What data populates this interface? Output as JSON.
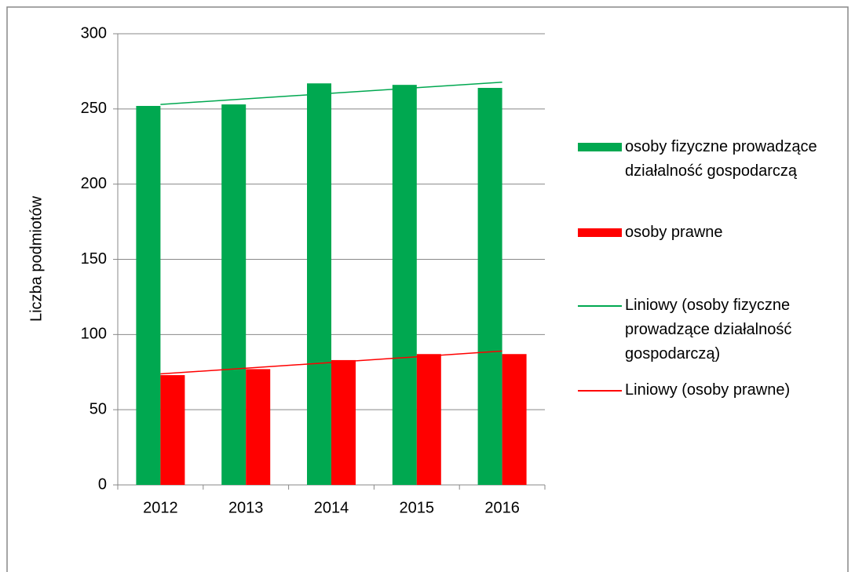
{
  "chart_data": {
    "type": "bar",
    "y_label": "Liczba podmiotów",
    "categories": [
      "2012",
      "2013",
      "2014",
      "2015",
      "2016"
    ],
    "series": [
      {
        "name": "osoby fizyczne prowadzące działalność gospodarczą",
        "color": "#00a850",
        "values": [
          252,
          253,
          267,
          266,
          264
        ]
      },
      {
        "name": "osoby prawne",
        "color": "#ff0000",
        "values": [
          73,
          77,
          83,
          87,
          87
        ]
      },
      {
        "name": "Liniowy (osoby fizyczne prowadzące działalność gospodarczą)",
        "color": "#00a850",
        "type": "line",
        "values": [
          253,
          256.7,
          260.4,
          264.1,
          267.8
        ]
      },
      {
        "name": "Liniowy (osoby prawne)",
        "color": "#ff0000",
        "type": "line",
        "values": [
          73.8,
          77.6,
          81.4,
          85.2,
          89
        ]
      }
    ],
    "ylim": [
      0,
      300
    ],
    "yticks": [
      0,
      50,
      100,
      150,
      200,
      250,
      300
    ],
    "grid": true
  }
}
